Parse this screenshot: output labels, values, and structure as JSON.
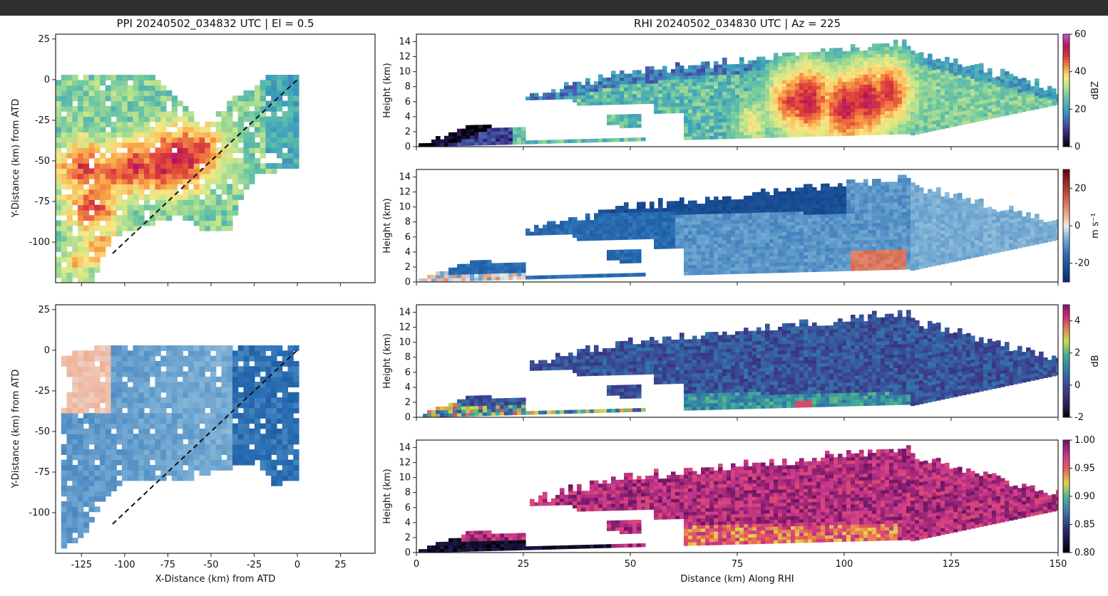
{
  "chart_data": [
    {
      "id": "ppi_top",
      "type": "heatmap",
      "title": "PPI 20240502_034832 UTC | El = 0.5",
      "xlabel": "",
      "ylabel": "Y-Distance (km) from ATD",
      "xlim": [
        -140,
        45
      ],
      "ylim": [
        -125,
        28
      ],
      "xticks": [
        -125,
        -100,
        -75,
        -50,
        -25,
        0,
        25
      ],
      "yticks": [
        25,
        0,
        -25,
        -50,
        -75,
        -100
      ],
      "colormap": "spectral_r",
      "rhi_line": {
        "x": [
          -107,
          0
        ],
        "y": [
          -107,
          0
        ]
      },
      "echo_polygon": [
        [
          -140,
          0
        ],
        [
          -85,
          0
        ],
        [
          -65,
          -20
        ],
        [
          -55,
          -28
        ],
        [
          -35,
          -10
        ],
        [
          -32,
          -10
        ],
        [
          -20,
          0
        ],
        [
          0,
          0
        ],
        [
          0,
          -55
        ],
        [
          -25,
          -60
        ],
        [
          -35,
          -75
        ],
        [
          -40,
          -95
        ],
        [
          -55,
          -95
        ],
        [
          -70,
          -85
        ],
        [
          -100,
          -95
        ],
        [
          -110,
          -100
        ],
        [
          -120,
          -125
        ],
        [
          -140,
          -125
        ]
      ],
      "cores": [
        {
          "x": -125,
          "y": -55,
          "v": 50
        },
        {
          "x": -110,
          "y": -60,
          "v": 48
        },
        {
          "x": -95,
          "y": -55,
          "v": 52
        },
        {
          "x": -80,
          "y": -55,
          "v": 52
        },
        {
          "x": -70,
          "y": -50,
          "v": 55
        },
        {
          "x": -60,
          "y": -45,
          "v": 50
        },
        {
          "x": -120,
          "y": -80,
          "v": 50
        },
        {
          "x": -115,
          "y": -105,
          "v": 45
        },
        {
          "x": -130,
          "y": -115,
          "v": 40
        },
        {
          "x": -55,
          "y": -30,
          "v": 38
        }
      ]
    },
    {
      "id": "ppi_bottom",
      "type": "heatmap",
      "title": "",
      "xlabel": "X-Distance (km) from ATD",
      "ylabel": "Y-Distance (km) from ATD",
      "xlim": [
        -140,
        45
      ],
      "ylim": [
        -125,
        28
      ],
      "xticks": [
        -125,
        -100,
        -75,
        -50,
        -25,
        0,
        25
      ],
      "yticks": [
        25,
        0,
        -25,
        -50,
        -75,
        -100
      ],
      "colormap": "RdBu_r",
      "rhi_line": {
        "x": [
          -107,
          0
        ],
        "y": [
          -107,
          0
        ]
      },
      "echo_polygon": [
        [
          -120,
          0
        ],
        [
          -60,
          0
        ],
        [
          -20,
          0
        ],
        [
          0,
          0
        ],
        [
          0,
          -80
        ],
        [
          -15,
          -85
        ],
        [
          -25,
          -70
        ],
        [
          -45,
          -75
        ],
        [
          -60,
          -80
        ],
        [
          -80,
          -82
        ],
        [
          -100,
          -82
        ],
        [
          -115,
          -95
        ],
        [
          -125,
          -115
        ],
        [
          -138,
          -125
        ],
        [
          -140,
          -50
        ],
        [
          -132,
          -20
        ],
        [
          -140,
          -5
        ]
      ]
    },
    {
      "id": "rhi_dbz",
      "type": "heatmap",
      "title": "RHI 20240502_034830 UTC | Az = 225",
      "xlabel": "",
      "ylabel": "Height (km)",
      "xlim": [
        0,
        150
      ],
      "ylim": [
        0,
        15
      ],
      "yticks": [
        0,
        2,
        4,
        6,
        8,
        10,
        12,
        14
      ],
      "colormap": "spectral_r",
      "colorbar": {
        "label": "dBZ",
        "range": [
          0,
          60
        ],
        "ticks": [
          0,
          20,
          40,
          60
        ]
      },
      "cores": [
        {
          "x": 87,
          "y": 6,
          "v": 50
        },
        {
          "x": 91,
          "y": 6,
          "v": 55
        },
        {
          "x": 100,
          "y": 5,
          "v": 55
        },
        {
          "x": 105,
          "y": 6,
          "v": 55
        },
        {
          "x": 110,
          "y": 7,
          "v": 52
        },
        {
          "x": 78,
          "y": 3,
          "v": 40
        }
      ]
    },
    {
      "id": "rhi_vel",
      "type": "heatmap",
      "title": "",
      "xlabel": "",
      "ylabel": "Height (km)",
      "xlim": [
        0,
        150
      ],
      "ylim": [
        0,
        15
      ],
      "yticks": [
        0,
        2,
        4,
        6,
        8,
        10,
        12,
        14
      ],
      "colormap": "RdBu_r",
      "colorbar": {
        "label": "m s⁻¹",
        "range": [
          -30,
          30
        ],
        "ticks": [
          -20,
          0,
          20
        ]
      },
      "patch": {
        "x": [
          101,
          114
        ],
        "y": [
          1.5,
          4
        ],
        "v": 12
      }
    },
    {
      "id": "rhi_zdr",
      "type": "heatmap",
      "title": "",
      "xlabel": "",
      "ylabel": "Height (km)",
      "xlim": [
        0,
        150
      ],
      "ylim": [
        0,
        15
      ],
      "yticks": [
        0,
        2,
        4,
        6,
        8,
        10,
        12,
        14
      ],
      "colormap": "viridis_magma",
      "colorbar": {
        "label": "dB",
        "range": [
          -2,
          5
        ],
        "ticks": [
          -2,
          0,
          2,
          4
        ]
      }
    },
    {
      "id": "rhi_rhohv",
      "type": "heatmap",
      "title": "",
      "xlabel": "Distance (km) Along RHI",
      "ylabel": "Height (km)",
      "xlim": [
        0,
        150
      ],
      "ylim": [
        0,
        15
      ],
      "xticks": [
        0,
        25,
        50,
        75,
        100,
        125,
        150
      ],
      "yticks": [
        0,
        2,
        4,
        6,
        8,
        10,
        12,
        14
      ],
      "colormap": "magma_purple",
      "colorbar": {
        "label": "",
        "range": [
          0.8,
          1.0
        ],
        "ticks": [
          "0.80",
          "0.85",
          "0.90",
          "0.95",
          "1.00"
        ]
      }
    }
  ]
}
